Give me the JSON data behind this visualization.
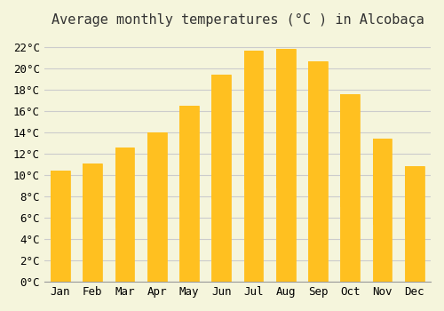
{
  "title": "Average monthly temperatures (°C ) in Alcobaça",
  "months": [
    "Jan",
    "Feb",
    "Mar",
    "Apr",
    "May",
    "Jun",
    "Jul",
    "Aug",
    "Sep",
    "Oct",
    "Nov",
    "Dec"
  ],
  "temperatures": [
    10.4,
    11.1,
    12.6,
    14.0,
    16.5,
    19.4,
    21.7,
    21.8,
    20.7,
    17.6,
    13.4,
    10.8
  ],
  "bar_color_top": "#FFC020",
  "bar_color_bottom": "#FFD870",
  "ylim": [
    0,
    23
  ],
  "yticks": [
    0,
    2,
    4,
    6,
    8,
    10,
    12,
    14,
    16,
    18,
    20,
    22
  ],
  "background_color": "#F5F5DC",
  "grid_color": "#CCCCCC",
  "title_fontsize": 11,
  "tick_fontsize": 9,
  "font_family": "monospace"
}
